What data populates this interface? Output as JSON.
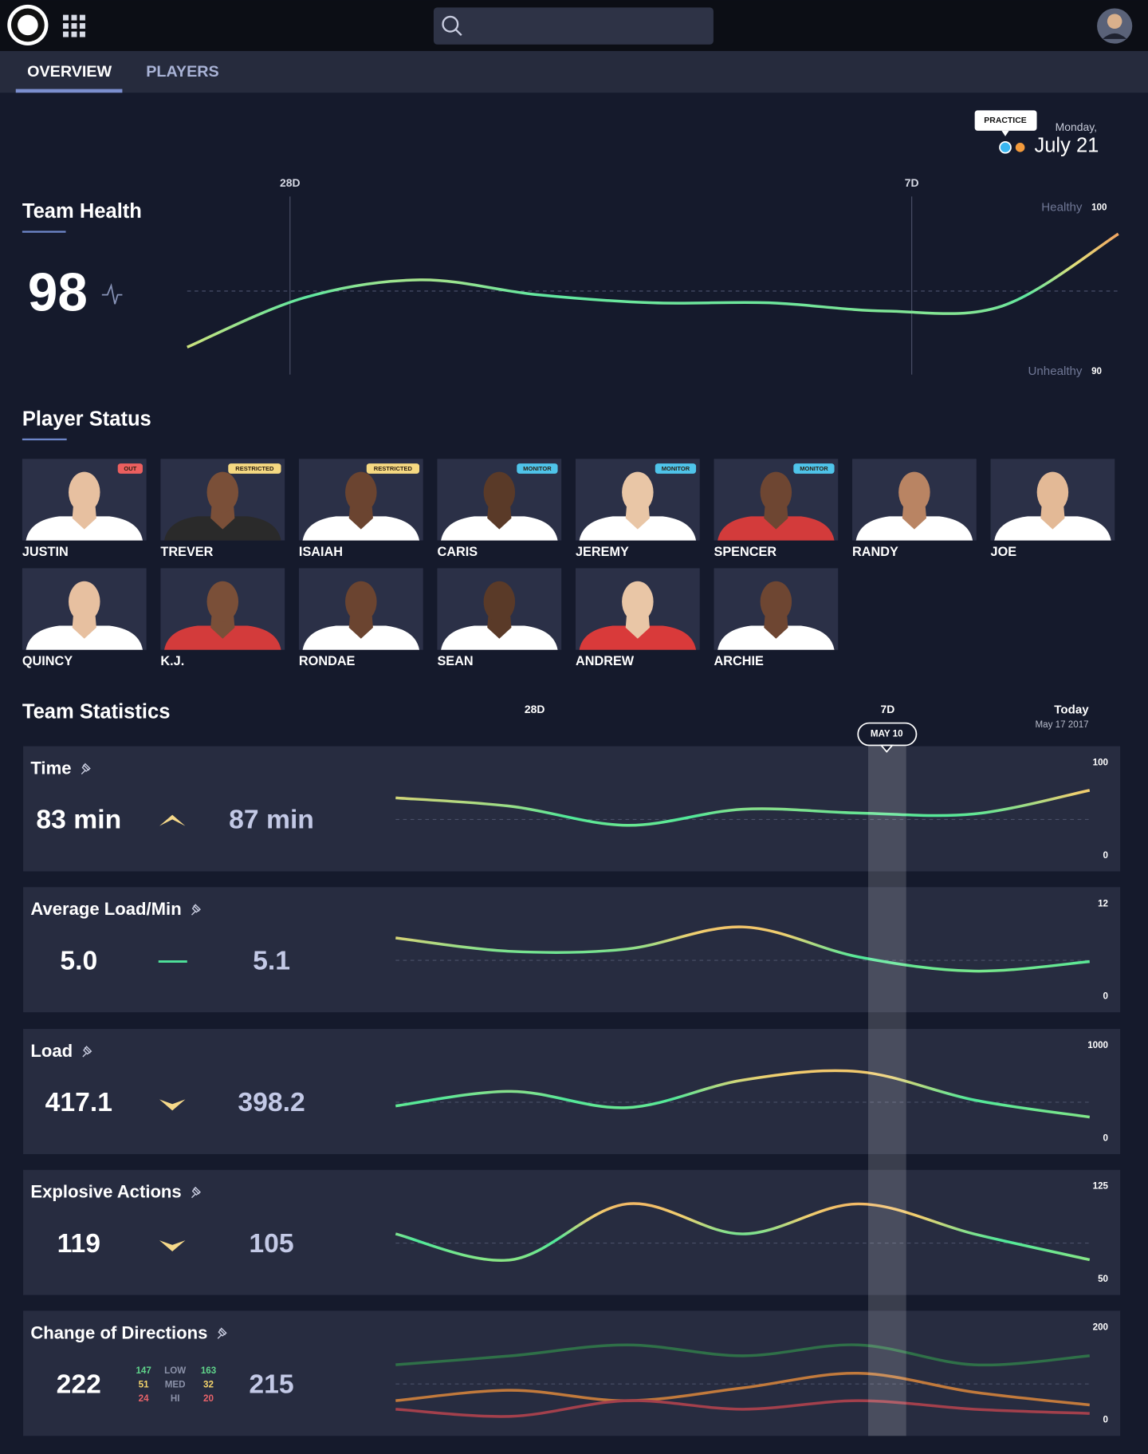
{
  "nav": {
    "tabs": [
      "OVERVIEW",
      "PLAYERS"
    ]
  },
  "header": {
    "tag": "PRACTICE",
    "weekday": "Monday,",
    "date": "July 21"
  },
  "team_health": {
    "title": "Team Health",
    "value": 98,
    "markers": [
      "28D",
      "7D"
    ],
    "high_label": "Healthy",
    "high": 100,
    "low_label": "Unhealthy",
    "low": 90,
    "values": [
      91.5,
      94.5,
      95.6,
      94.7,
      94.2,
      94.2,
      93.7,
      94.0,
      98.4
    ]
  },
  "player_status": {
    "title": "Player Status",
    "players": [
      {
        "name": "JUSTIN",
        "status": "OUT"
      },
      {
        "name": "TREVER",
        "status": "RESTRICTED"
      },
      {
        "name": "ISAIAH",
        "status": "RESTRICTED"
      },
      {
        "name": "CARIS",
        "status": "MONITOR"
      },
      {
        "name": "JEREMY",
        "status": "MONITOR"
      },
      {
        "name": "SPENCER",
        "status": "MONITOR"
      },
      {
        "name": "RANDY"
      },
      {
        "name": "JOE"
      },
      {
        "name": "QUINCY"
      },
      {
        "name": "K.J."
      },
      {
        "name": "RONDAE"
      },
      {
        "name": "SEAN"
      },
      {
        "name": "ANDREW"
      },
      {
        "name": "ARCHIE"
      }
    ]
  },
  "team_statistics": {
    "title": "Team Statistics",
    "markers": [
      "28D",
      "7D"
    ],
    "today": "Today",
    "today_date": "May 17 2017",
    "highlight": "MAY 10",
    "stats": [
      {
        "title": "Time",
        "current": "83 min",
        "trend": "up",
        "previous": "87 min",
        "ylim": [
          0,
          100
        ],
        "values": [
          65,
          56,
          36,
          53,
          49,
          48,
          73
        ]
      },
      {
        "title": "Average Load/Min",
        "current": "5.0",
        "trend": "flat",
        "previous": "5.1",
        "ylim": [
          0,
          12
        ],
        "values": [
          7.9,
          6.2,
          6.5,
          9.3,
          5.5,
          3.7,
          4.9
        ]
      },
      {
        "title": "Load",
        "current": "417.1",
        "trend": "down",
        "previous": "398.2",
        "ylim": [
          0,
          1000
        ],
        "values": [
          382,
          536,
          364,
          655,
          745,
          445,
          264
        ]
      },
      {
        "title": "Explosive Actions",
        "current": "119",
        "trend": "down",
        "previous": "105",
        "ylim": [
          50,
          125
        ],
        "values": [
          88.9,
          68.4,
          112.7,
          88.9,
          112.7,
          88.9,
          68.4
        ]
      },
      {
        "title": "Change of Directions",
        "current": "222",
        "previous": "215",
        "ylim": [
          0,
          200
        ],
        "breakdown": [
          {
            "label": "LOW",
            "current": 147,
            "previous": 163,
            "color": "#5fd38a"
          },
          {
            "label": "MED",
            "current": 51,
            "previous": 32,
            "color": "#f3d36b"
          },
          {
            "label": "HI",
            "current": 24,
            "previous": 20,
            "color": "#e8636a"
          }
        ],
        "series": [
          {
            "color": "#2f7048",
            "values": [
              125,
              144,
              167,
              144,
              167,
              125,
              144
            ]
          },
          {
            "color": "#c27a3c",
            "values": [
              49,
              71,
              49,
              76,
              107,
              67,
              40
            ]
          },
          {
            "color": "#a3404c",
            "values": [
              31,
              16,
              49,
              31,
              49,
              31,
              22
            ]
          }
        ]
      }
    ]
  }
}
